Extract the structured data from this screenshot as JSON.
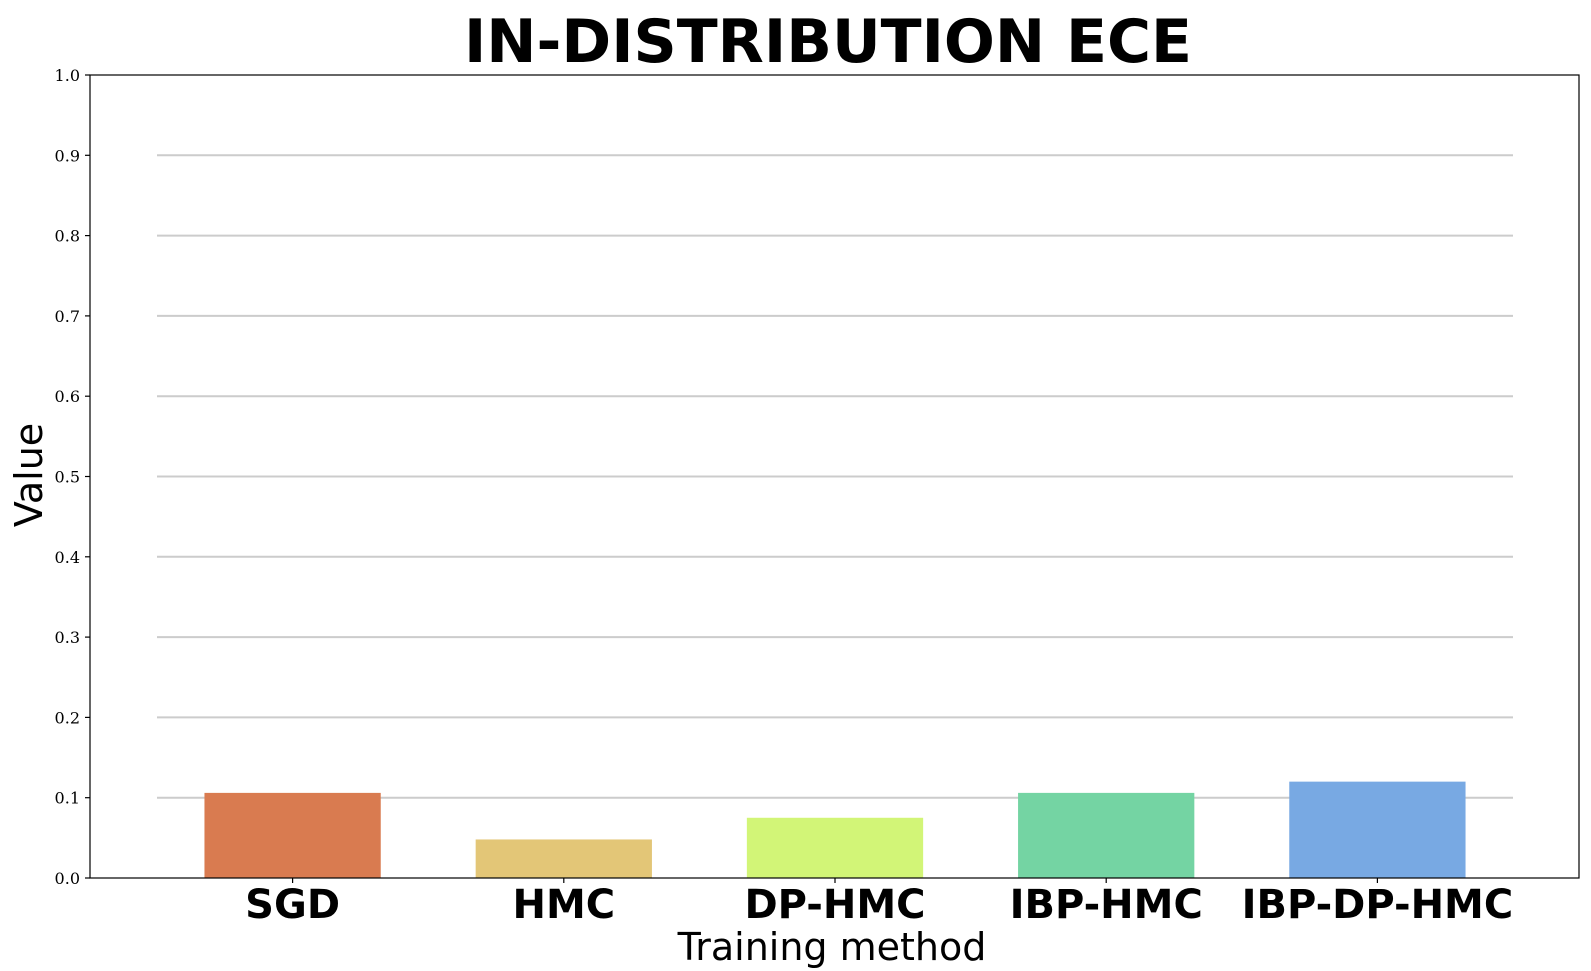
{
  "chart_data": {
    "type": "bar",
    "title": "IN-DISTRIBUTION ECE",
    "xlabel": "Training method",
    "ylabel": "Value",
    "categories": [
      "SGD",
      "HMC",
      "DP-HMC",
      "IBP-HMC",
      "IBP-DP-HMC"
    ],
    "values": [
      0.106,
      0.048,
      0.075,
      0.106,
      0.12
    ],
    "colors": [
      "#d97b50",
      "#e3c677",
      "#d2f577",
      "#74d4a3",
      "#78a9e3"
    ],
    "ylim": [
      0,
      1.0
    ],
    "yticks": [
      "0.0",
      "0.1",
      "0.2",
      "0.3",
      "0.4",
      "0.5",
      "0.6",
      "0.7",
      "0.8",
      "0.9",
      "1.0"
    ],
    "grid": true,
    "legend": false
  }
}
